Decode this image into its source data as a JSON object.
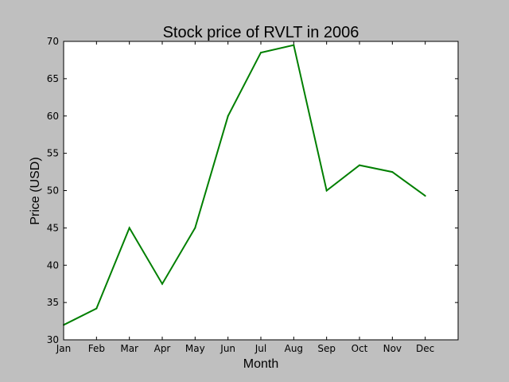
{
  "chart_data": {
    "type": "line",
    "title": "Stock price of RVLT in 2006",
    "xlabel": "Month",
    "ylabel": "Price (USD)",
    "categories": [
      "Jan",
      "Feb",
      "Mar",
      "Apr",
      "May",
      "Jun",
      "Jul",
      "Aug",
      "Sep",
      "Oct",
      "Nov",
      "Dec"
    ],
    "series": [
      {
        "values": [
          32.0,
          34.2,
          45.0,
          37.5,
          45.0,
          60.0,
          68.5,
          69.5,
          50.0,
          53.4,
          52.5,
          49.3
        ],
        "color": "#007f00"
      }
    ],
    "ylim": [
      30,
      70
    ],
    "yticks": [
      30,
      35,
      40,
      45,
      50,
      55,
      60,
      65,
      70
    ],
    "grid": false,
    "legend": "none"
  },
  "colors": {
    "figure_background": "#bfbfbf",
    "axes_background": "#ffffff",
    "line": "#007f00"
  }
}
